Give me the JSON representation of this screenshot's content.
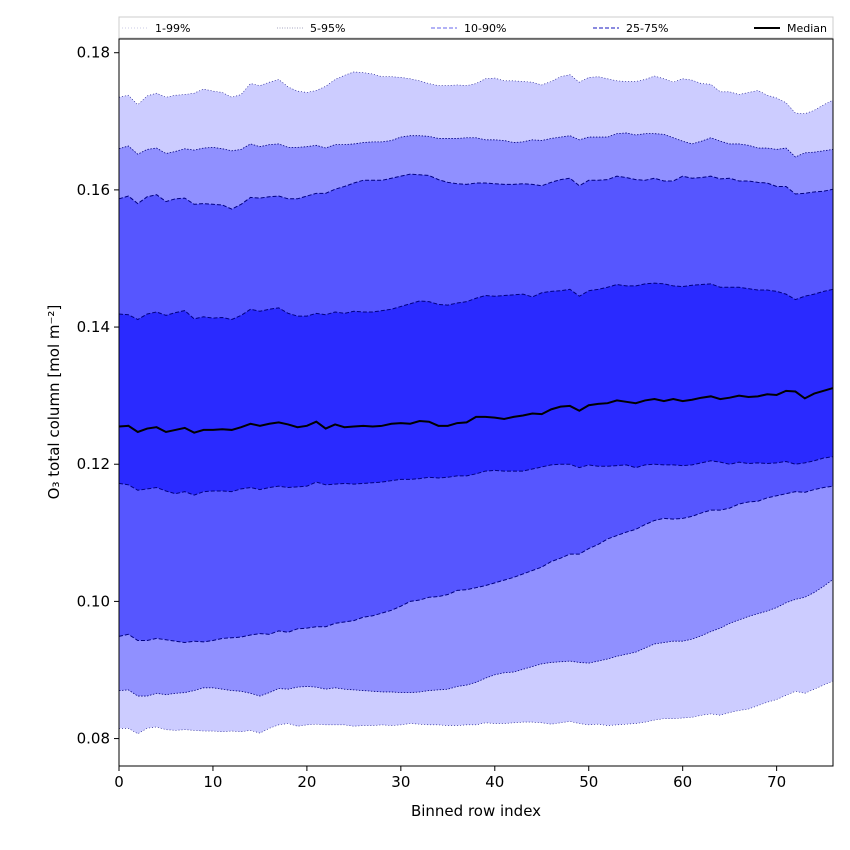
{
  "chart_data": {
    "type": "area",
    "xlabel": "Binned row index",
    "ylabel": "O₃ total column [mol m⁻²]",
    "xlim": [
      0,
      76
    ],
    "ylim": [
      0.076,
      0.182
    ],
    "xticks": [
      0,
      10,
      20,
      30,
      40,
      50,
      60,
      70
    ],
    "yticks": [
      0.08,
      0.1,
      0.12,
      0.14,
      0.16,
      0.18
    ],
    "ytick_labels": [
      "0.08",
      "0.10",
      "0.12",
      "0.14",
      "0.16",
      "0.18"
    ],
    "grid": false,
    "legend_position": "top",
    "legend": [
      {
        "label": "1-99%",
        "style": "dotted-thin"
      },
      {
        "label": "5-95%",
        "style": "dotted"
      },
      {
        "label": "10-90%",
        "style": "dashed-light"
      },
      {
        "label": "25-75%",
        "style": "dashed"
      },
      {
        "label": "Median",
        "style": "solid"
      }
    ],
    "colors": {
      "band_1_99": "#ccccff",
      "band_5_95": "#9090ff",
      "band_10_90": "#5656ff",
      "band_25_75": "#2a2aff",
      "median": "#000000",
      "edge": "#000080"
    },
    "x": [
      0,
      1,
      2,
      3,
      4,
      5,
      6,
      7,
      8,
      9,
      10,
      11,
      12,
      13,
      14,
      15,
      16,
      17,
      18,
      19,
      20,
      21,
      22,
      23,
      24,
      25,
      26,
      27,
      28,
      29,
      30,
      31,
      32,
      33,
      34,
      35,
      36,
      37,
      38,
      39,
      40,
      41,
      42,
      43,
      44,
      45,
      46,
      47,
      48,
      49,
      50,
      51,
      52,
      53,
      54,
      55,
      56,
      57,
      58,
      59,
      60,
      61,
      62,
      63,
      64,
      65,
      66,
      67,
      68,
      69,
      70,
      71,
      72,
      73,
      74,
      75,
      76
    ],
    "series": [
      {
        "name": "1-99%",
        "lower": [
          0.0815,
          0.0815,
          0.0807,
          0.0815,
          0.0817,
          0.0813,
          0.0812,
          0.0813,
          0.0812,
          0.0811,
          0.0811,
          0.081,
          0.0811,
          0.081,
          0.0812,
          0.0808,
          0.0815,
          0.082,
          0.0822,
          0.0818,
          0.082,
          0.0821,
          0.082,
          0.082,
          0.082,
          0.0818,
          0.0819,
          0.0819,
          0.082,
          0.0819,
          0.082,
          0.0822,
          0.0821,
          0.082,
          0.082,
          0.0819,
          0.0819,
          0.082,
          0.082,
          0.0823,
          0.0822,
          0.0822,
          0.0823,
          0.0824,
          0.0824,
          0.0823,
          0.0821,
          0.0823,
          0.0825,
          0.0822,
          0.082,
          0.0821,
          0.0819,
          0.082,
          0.0821,
          0.0822,
          0.0824,
          0.0827,
          0.0829,
          0.0829,
          0.083,
          0.0831,
          0.0834,
          0.0836,
          0.0834,
          0.0838,
          0.0841,
          0.0843,
          0.0848,
          0.0853,
          0.0857,
          0.0863,
          0.0869,
          0.0866,
          0.0872,
          0.0878,
          0.0884
        ],
        "upper": [
          0.1735,
          0.1738,
          0.1724,
          0.1737,
          0.1741,
          0.1735,
          0.1738,
          0.1739,
          0.1741,
          0.1747,
          0.1744,
          0.1742,
          0.1735,
          0.1739,
          0.1755,
          0.1752,
          0.1757,
          0.1761,
          0.175,
          0.1744,
          0.1742,
          0.1745,
          0.1751,
          0.1761,
          0.1767,
          0.1772,
          0.1771,
          0.1769,
          0.1765,
          0.1765,
          0.1764,
          0.1762,
          0.1759,
          0.1755,
          0.1752,
          0.1752,
          0.1753,
          0.1752,
          0.1755,
          0.1762,
          0.1763,
          0.1759,
          0.1759,
          0.1758,
          0.1757,
          0.1753,
          0.1758,
          0.1765,
          0.1768,
          0.1757,
          0.1764,
          0.1765,
          0.1762,
          0.1759,
          0.1758,
          0.1758,
          0.1761,
          0.1766,
          0.1762,
          0.1757,
          0.1762,
          0.176,
          0.1755,
          0.1754,
          0.1743,
          0.1743,
          0.1739,
          0.1742,
          0.1745,
          0.1738,
          0.1734,
          0.1727,
          0.1712,
          0.1711,
          0.1716,
          0.1724,
          0.1731
        ]
      },
      {
        "name": "5-95%",
        "lower": [
          0.087,
          0.0871,
          0.0862,
          0.0862,
          0.0866,
          0.0864,
          0.0866,
          0.0867,
          0.087,
          0.0874,
          0.0874,
          0.0872,
          0.087,
          0.0869,
          0.0866,
          0.0862,
          0.0867,
          0.0873,
          0.0872,
          0.0875,
          0.0876,
          0.0875,
          0.0872,
          0.0874,
          0.0872,
          0.0871,
          0.087,
          0.0869,
          0.0868,
          0.0868,
          0.0867,
          0.0867,
          0.0868,
          0.087,
          0.0871,
          0.0872,
          0.0876,
          0.0878,
          0.0882,
          0.0888,
          0.0893,
          0.0896,
          0.0897,
          0.0901,
          0.0905,
          0.0909,
          0.0911,
          0.0912,
          0.0913,
          0.0911,
          0.091,
          0.0913,
          0.0916,
          0.092,
          0.0923,
          0.0926,
          0.0932,
          0.0938,
          0.094,
          0.0942,
          0.0942,
          0.0945,
          0.095,
          0.0956,
          0.0961,
          0.0968,
          0.0973,
          0.0978,
          0.0982,
          0.0986,
          0.0991,
          0.0998,
          0.1003,
          0.1006,
          0.1013,
          0.1022,
          0.1032
        ],
        "upper": [
          0.166,
          0.1664,
          0.1652,
          0.1659,
          0.1661,
          0.1653,
          0.1656,
          0.166,
          0.1658,
          0.1661,
          0.1662,
          0.166,
          0.1657,
          0.1659,
          0.1667,
          0.1663,
          0.1666,
          0.1667,
          0.1662,
          0.1662,
          0.1663,
          0.1665,
          0.1661,
          0.1666,
          0.1666,
          0.1667,
          0.1669,
          0.167,
          0.167,
          0.1672,
          0.1677,
          0.1679,
          0.1679,
          0.1678,
          0.1675,
          0.1675,
          0.1675,
          0.1676,
          0.1676,
          0.1673,
          0.1673,
          0.1672,
          0.1669,
          0.167,
          0.1673,
          0.1672,
          0.1675,
          0.1677,
          0.1679,
          0.1673,
          0.1677,
          0.1677,
          0.1677,
          0.1682,
          0.1683,
          0.168,
          0.1682,
          0.1682,
          0.1681,
          0.1676,
          0.1671,
          0.1667,
          0.1671,
          0.1676,
          0.1671,
          0.1667,
          0.1667,
          0.1665,
          0.1661,
          0.1661,
          0.1659,
          0.1661,
          0.1648,
          0.1654,
          0.1655,
          0.1657,
          0.1659
        ]
      },
      {
        "name": "10-90%",
        "lower": [
          0.0949,
          0.0952,
          0.0943,
          0.0943,
          0.0946,
          0.0944,
          0.0942,
          0.094,
          0.0942,
          0.0941,
          0.0943,
          0.0946,
          0.0947,
          0.0948,
          0.0951,
          0.0953,
          0.0952,
          0.0957,
          0.0955,
          0.096,
          0.0961,
          0.0963,
          0.0963,
          0.0968,
          0.097,
          0.0972,
          0.0977,
          0.0979,
          0.0983,
          0.0987,
          0.0993,
          0.1,
          0.1002,
          0.1006,
          0.1007,
          0.101,
          0.1016,
          0.1017,
          0.102,
          0.1023,
          0.1027,
          0.1031,
          0.1035,
          0.104,
          0.1045,
          0.105,
          0.1058,
          0.1063,
          0.1069,
          0.1069,
          0.1077,
          0.1083,
          0.1091,
          0.1096,
          0.1101,
          0.1105,
          0.1112,
          0.1118,
          0.1121,
          0.112,
          0.1121,
          0.1124,
          0.1129,
          0.1133,
          0.1133,
          0.1136,
          0.1142,
          0.1145,
          0.1146,
          0.1151,
          0.1154,
          0.1157,
          0.116,
          0.1159,
          0.1163,
          0.1166,
          0.1168
        ],
        "upper": [
          0.1587,
          0.1591,
          0.158,
          0.159,
          0.1593,
          0.1583,
          0.1587,
          0.1588,
          0.1579,
          0.158,
          0.1579,
          0.1578,
          0.1572,
          0.1579,
          0.1589,
          0.1588,
          0.159,
          0.1591,
          0.1587,
          0.1587,
          0.1591,
          0.1595,
          0.1595,
          0.1601,
          0.1605,
          0.161,
          0.1614,
          0.1614,
          0.1614,
          0.1617,
          0.162,
          0.1623,
          0.1622,
          0.1621,
          0.1615,
          0.1611,
          0.1609,
          0.1608,
          0.161,
          0.161,
          0.1609,
          0.1608,
          0.1608,
          0.1609,
          0.1608,
          0.1606,
          0.1611,
          0.1615,
          0.1617,
          0.1606,
          0.1614,
          0.1614,
          0.1615,
          0.162,
          0.1618,
          0.1615,
          0.1614,
          0.1617,
          0.1613,
          0.1613,
          0.162,
          0.1617,
          0.1618,
          0.162,
          0.1616,
          0.1617,
          0.1613,
          0.1613,
          0.1611,
          0.161,
          0.1605,
          0.1605,
          0.1594,
          0.1595,
          0.1597,
          0.1598,
          0.1601
        ]
      },
      {
        "name": "25-75%",
        "lower": [
          0.1172,
          0.117,
          0.1162,
          0.1164,
          0.1166,
          0.1161,
          0.1157,
          0.116,
          0.1155,
          0.116,
          0.1161,
          0.1161,
          0.116,
          0.1164,
          0.1166,
          0.1163,
          0.1166,
          0.1168,
          0.1166,
          0.1167,
          0.1168,
          0.1174,
          0.117,
          0.1171,
          0.1172,
          0.1171,
          0.1172,
          0.1173,
          0.1174,
          0.1176,
          0.1178,
          0.1178,
          0.1179,
          0.1181,
          0.118,
          0.1181,
          0.1183,
          0.1183,
          0.1186,
          0.119,
          0.1191,
          0.119,
          0.119,
          0.119,
          0.1193,
          0.1196,
          0.1199,
          0.12,
          0.12,
          0.1195,
          0.1199,
          0.1197,
          0.1197,
          0.1198,
          0.1199,
          0.1195,
          0.1199,
          0.12,
          0.1199,
          0.1199,
          0.1198,
          0.1199,
          0.1202,
          0.1205,
          0.1203,
          0.12,
          0.1203,
          0.1201,
          0.1202,
          0.1201,
          0.1202,
          0.1204,
          0.12,
          0.1202,
          0.1205,
          0.1209,
          0.1211
        ],
        "upper": [
          0.1419,
          0.1418,
          0.1411,
          0.1419,
          0.1422,
          0.1417,
          0.1421,
          0.1424,
          0.1412,
          0.1415,
          0.1413,
          0.1414,
          0.1411,
          0.1417,
          0.1426,
          0.1423,
          0.1426,
          0.1428,
          0.142,
          0.1416,
          0.1416,
          0.142,
          0.1418,
          0.1422,
          0.142,
          0.1423,
          0.1422,
          0.1422,
          0.1424,
          0.1426,
          0.143,
          0.1434,
          0.1438,
          0.1437,
          0.1433,
          0.1432,
          0.1435,
          0.1437,
          0.1442,
          0.1446,
          0.1445,
          0.1446,
          0.1447,
          0.1448,
          0.1444,
          0.145,
          0.1452,
          0.1453,
          0.1455,
          0.1445,
          0.1453,
          0.1455,
          0.1458,
          0.1462,
          0.146,
          0.146,
          0.1463,
          0.1464,
          0.1463,
          0.146,
          0.1459,
          0.1461,
          0.1462,
          0.1463,
          0.1458,
          0.1458,
          0.1458,
          0.1456,
          0.1454,
          0.1454,
          0.1452,
          0.1448,
          0.144,
          0.1445,
          0.1448,
          0.1452,
          0.1455
        ]
      },
      {
        "name": "Median",
        "values": [
          0.1255,
          0.1256,
          0.1247,
          0.1252,
          0.1254,
          0.1247,
          0.125,
          0.1253,
          0.1246,
          0.125,
          0.125,
          0.1251,
          0.125,
          0.1254,
          0.1259,
          0.1256,
          0.1259,
          0.1261,
          0.1258,
          0.1254,
          0.1256,
          0.1262,
          0.1252,
          0.1258,
          0.1254,
          0.1255,
          0.1256,
          0.1255,
          0.1256,
          0.1259,
          0.126,
          0.1259,
          0.1263,
          0.1262,
          0.1256,
          0.1256,
          0.126,
          0.1261,
          0.1269,
          0.1269,
          0.1268,
          0.1266,
          0.1269,
          0.1271,
          0.1274,
          0.1273,
          0.128,
          0.1284,
          0.1285,
          0.1278,
          0.1286,
          0.1288,
          0.1289,
          0.1293,
          0.1291,
          0.1289,
          0.1293,
          0.1295,
          0.1292,
          0.1295,
          0.1292,
          0.1294,
          0.1297,
          0.1299,
          0.1295,
          0.1297,
          0.13,
          0.1298,
          0.1299,
          0.1302,
          0.1301,
          0.1307,
          0.1306,
          0.1296,
          0.1303,
          0.1307,
          0.1311
        ]
      }
    ]
  }
}
